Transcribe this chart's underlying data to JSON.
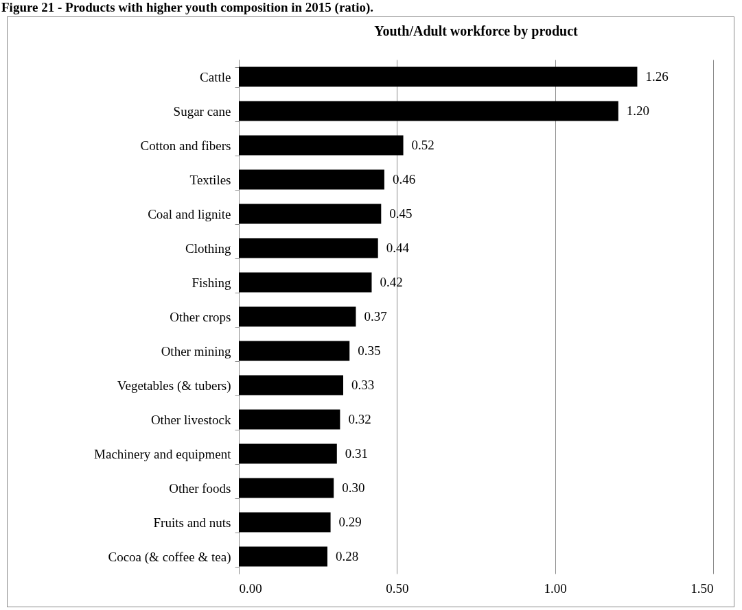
{
  "chart_data": {
    "type": "bar",
    "orientation": "horizontal",
    "title": "Youth/Adult workforce by product",
    "annotations": [
      "Figure 21 - Products with higher youth composition in 2015 (ratio)."
    ],
    "categories": [
      "Cattle",
      "Sugar cane",
      "Cotton and fibers",
      "Textiles",
      "Coal and lignite",
      "Clothing",
      "Fishing",
      "Other crops",
      "Other mining",
      "Vegetables (& tubers)",
      "Other livestock",
      "Machinery and equipment",
      "Other foods",
      "Fruits and nuts",
      "Cocoa (& coffee & tea)"
    ],
    "values": [
      1.26,
      1.2,
      0.52,
      0.46,
      0.45,
      0.44,
      0.42,
      0.37,
      0.35,
      0.33,
      0.32,
      0.31,
      0.3,
      0.29,
      0.28
    ],
    "value_labels": [
      "1.26",
      "1.20",
      "0.52",
      "0.46",
      "0.45",
      "0.44",
      "0.42",
      "0.37",
      "0.35",
      "0.33",
      "0.32",
      "0.31",
      "0.30",
      "0.29",
      "0.28"
    ],
    "color": "#000000",
    "xlim": [
      0,
      1.5
    ],
    "xticks": [
      {
        "value": 0,
        "label": "0.00"
      },
      {
        "value": 0.5,
        "label": "0.50"
      },
      {
        "value": 1,
        "label": "1.00"
      },
      {
        "value": 1.5,
        "label": "1.50"
      }
    ],
    "grid": "x"
  }
}
